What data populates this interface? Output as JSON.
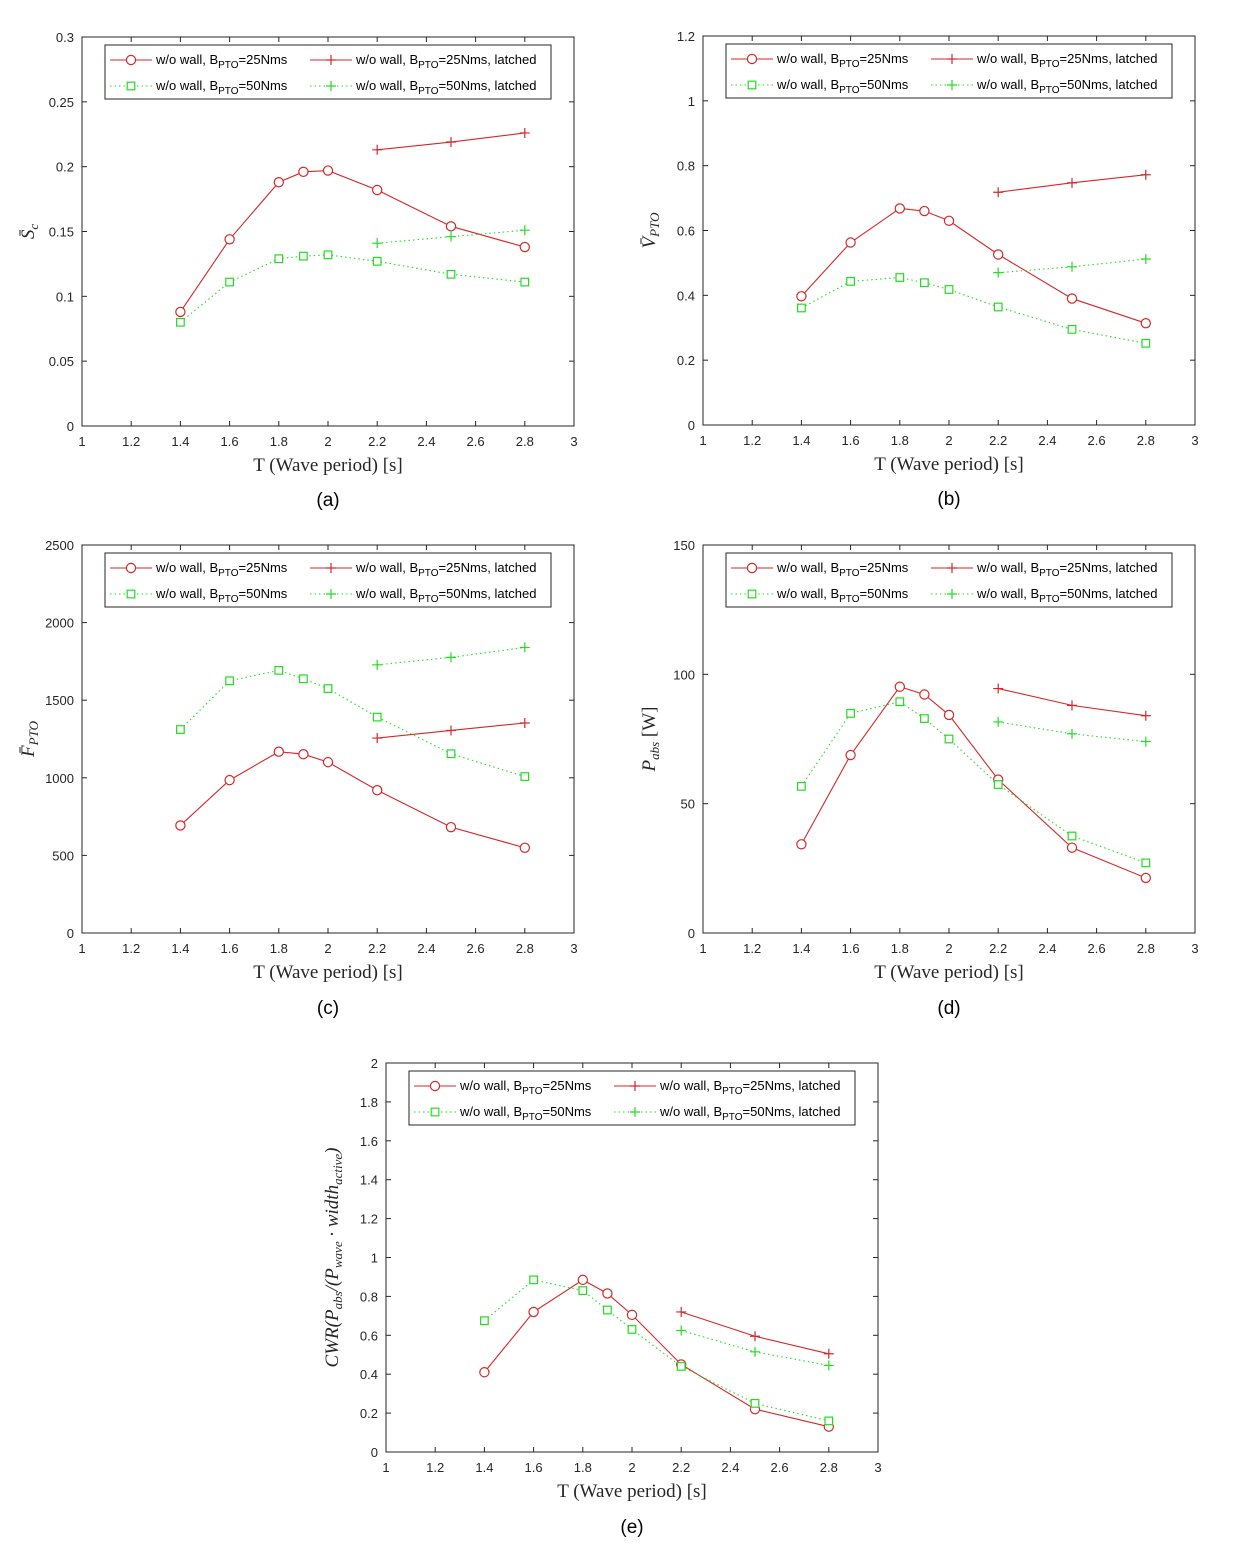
{
  "chart_data": [
    {
      "type": "line",
      "panel_label": "(a)",
      "xlabel": "T (Wave period) [s]",
      "ylabel": "S̄c",
      "ylabel_parts": [
        {
          "t": "S̄",
          "s": ""
        },
        {
          "t": "c",
          "s": "sub"
        }
      ],
      "xlim": [
        1,
        3
      ],
      "ylim": [
        0,
        0.3
      ],
      "xticks": [
        "1",
        "1.2",
        "1.4",
        "1.6",
        "1.8",
        "2",
        "2.2",
        "2.4",
        "2.6",
        "2.8",
        "3"
      ],
      "yticks": [
        "0",
        "0.05",
        "0.1",
        "0.15",
        "0.2",
        "0.25",
        "0.3"
      ],
      "yticks_values": [
        0,
        0.05,
        0.1,
        0.15,
        0.2,
        0.25,
        0.3
      ],
      "legend_placement": "top",
      "series": [
        {
          "name": "w/o wall, BPTO=25Nms",
          "legend_parts": [
            "w/o wall, B",
            "PTO",
            "=25Nms"
          ],
          "color": "#d62728",
          "marker": "circle",
          "dash": "solid",
          "x": [
            1.4,
            1.6,
            1.8,
            1.9,
            2.0,
            2.2,
            2.5,
            2.8
          ],
          "y": [
            0.088,
            0.144,
            0.188,
            0.196,
            0.197,
            0.182,
            0.154,
            0.138
          ]
        },
        {
          "name": "w/o wall, BPTO=25Nms, latched",
          "legend_parts": [
            "w/o wall, B",
            "PTO",
            "=25Nms, latched"
          ],
          "color": "#d62728",
          "marker": "plus",
          "dash": "solid",
          "x": [
            2.2,
            2.5,
            2.8
          ],
          "y": [
            0.213,
            0.219,
            0.226
          ]
        },
        {
          "name": "w/o wall, BPTO=50Nms",
          "legend_parts": [
            "w/o wall, B",
            "PTO",
            "=50Nms"
          ],
          "color": "#22dd22",
          "marker": "square",
          "dash": "dotted",
          "x": [
            1.4,
            1.6,
            1.8,
            1.9,
            2.0,
            2.2,
            2.5,
            2.8
          ],
          "y": [
            0.08,
            0.111,
            0.129,
            0.131,
            0.132,
            0.127,
            0.117,
            0.111
          ]
        },
        {
          "name": "w/o wall, BPTO=50Nms, latched",
          "legend_parts": [
            "w/o wall, B",
            "PTO",
            "=50Nms, latched"
          ],
          "color": "#22dd22",
          "marker": "plus",
          "dash": "dotted",
          "x": [
            2.2,
            2.5,
            2.8
          ],
          "y": [
            0.141,
            0.146,
            0.151
          ]
        }
      ]
    },
    {
      "type": "line",
      "panel_label": "(b)",
      "xlabel": "T (Wave period) [s]",
      "ylabel": "V̄PTO",
      "ylabel_parts": [
        {
          "t": "V̄",
          "s": ""
        },
        {
          "t": "PTO",
          "s": "sub"
        }
      ],
      "xlim": [
        1,
        3
      ],
      "ylim": [
        0,
        1.2
      ],
      "xticks": [
        "1",
        "1.2",
        "1.4",
        "1.6",
        "1.8",
        "2",
        "2.2",
        "2.4",
        "2.6",
        "2.8",
        "3"
      ],
      "yticks": [
        "0",
        "0.2",
        "0.4",
        "0.6",
        "0.8",
        "1",
        "1.2"
      ],
      "yticks_values": [
        0,
        0.2,
        0.4,
        0.6,
        0.8,
        1.0,
        1.2
      ],
      "legend_placement": "top",
      "series": [
        {
          "name": "w/o wall, BPTO=25Nms",
          "legend_parts": [
            "w/o wall, B",
            "PTO",
            "=25Nms"
          ],
          "color": "#d62728",
          "marker": "circle",
          "dash": "solid",
          "x": [
            1.4,
            1.6,
            1.8,
            1.9,
            2.0,
            2.2,
            2.5,
            2.8
          ],
          "y": [
            0.397,
            0.563,
            0.668,
            0.66,
            0.63,
            0.526,
            0.39,
            0.314
          ]
        },
        {
          "name": "w/o wall, BPTO=25Nms, latched",
          "legend_parts": [
            "w/o wall, B",
            "PTO",
            "=25Nms, latched"
          ],
          "color": "#d62728",
          "marker": "plus",
          "dash": "solid",
          "x": [
            2.2,
            2.5,
            2.8
          ],
          "y": [
            0.718,
            0.747,
            0.772
          ]
        },
        {
          "name": "w/o wall, BPTO=50Nms",
          "legend_parts": [
            "w/o wall, B",
            "PTO",
            "=50Nms"
          ],
          "color": "#22dd22",
          "marker": "square",
          "dash": "dotted",
          "x": [
            1.4,
            1.6,
            1.8,
            1.9,
            2.0,
            2.2,
            2.5,
            2.8
          ],
          "y": [
            0.361,
            0.443,
            0.455,
            0.439,
            0.418,
            0.364,
            0.295,
            0.252
          ]
        },
        {
          "name": "w/o wall, BPTO=50Nms, latched",
          "legend_parts": [
            "w/o wall, B",
            "PTO",
            "=50Nms, latched"
          ],
          "color": "#22dd22",
          "marker": "plus",
          "dash": "dotted",
          "x": [
            2.2,
            2.5,
            2.8
          ],
          "y": [
            0.47,
            0.488,
            0.512
          ]
        }
      ]
    },
    {
      "type": "line",
      "panel_label": "(c)",
      "xlabel": "T (Wave period) [s]",
      "ylabel": "F̄PTO",
      "ylabel_parts": [
        {
          "t": "F̄",
          "s": ""
        },
        {
          "t": "PTO",
          "s": "sub"
        }
      ],
      "xlim": [
        1,
        3
      ],
      "ylim": [
        0,
        2500
      ],
      "xticks": [
        "1",
        "1.2",
        "1.4",
        "1.6",
        "1.8",
        "2",
        "2.2",
        "2.4",
        "2.6",
        "2.8",
        "3"
      ],
      "yticks": [
        "0",
        "500",
        "1000",
        "1500",
        "2000",
        "2500"
      ],
      "yticks_values": [
        0,
        500,
        1000,
        1500,
        2000,
        2500
      ],
      "legend_placement": "top",
      "series": [
        {
          "name": "w/o wall, BPTO=25Nms",
          "legend_parts": [
            "w/o wall, B",
            "PTO",
            "=25Nms"
          ],
          "color": "#d62728",
          "marker": "circle",
          "dash": "solid",
          "x": [
            1.4,
            1.6,
            1.8,
            1.9,
            2.0,
            2.2,
            2.5,
            2.8
          ],
          "y": [
            693,
            985,
            1168,
            1152,
            1101,
            920,
            682,
            549
          ]
        },
        {
          "name": "w/o wall, BPTO=25Nms, latched",
          "legend_parts": [
            "w/o wall, B",
            "PTO",
            "=25Nms, latched"
          ],
          "color": "#d62728",
          "marker": "plus",
          "dash": "solid",
          "x": [
            2.2,
            2.5,
            2.8
          ],
          "y": [
            1256,
            1305,
            1353
          ]
        },
        {
          "name": "w/o wall, BPTO=50Nms",
          "legend_parts": [
            "w/o wall, B",
            "PTO",
            "=50Nms"
          ],
          "color": "#22dd22",
          "marker": "square",
          "dash": "dotted",
          "x": [
            1.4,
            1.6,
            1.8,
            1.9,
            2.0,
            2.2,
            2.5,
            2.8
          ],
          "y": [
            1311,
            1625,
            1692,
            1638,
            1575,
            1391,
            1155,
            1008
          ]
        },
        {
          "name": "w/o wall, BPTO=50Nms, latched",
          "legend_parts": [
            "w/o wall, B",
            "PTO",
            "=50Nms, latched"
          ],
          "color": "#22dd22",
          "marker": "plus",
          "dash": "dotted",
          "x": [
            2.2,
            2.5,
            2.8
          ],
          "y": [
            1728,
            1776,
            1840
          ]
        }
      ]
    },
    {
      "type": "line",
      "panel_label": "(d)",
      "xlabel": "T (Wave period) [s]",
      "ylabel": "Pabs [W]",
      "ylabel_parts": [
        {
          "t": "P",
          "s": ""
        },
        {
          "t": "abs",
          "s": "sub"
        },
        {
          "t": " [W]",
          "s": "upright"
        }
      ],
      "xlim": [
        1,
        3
      ],
      "ylim": [
        0,
        150
      ],
      "xticks": [
        "1",
        "1.2",
        "1.4",
        "1.6",
        "1.8",
        "2",
        "2.2",
        "2.4",
        "2.6",
        "2.8",
        "3"
      ],
      "yticks": [
        "0",
        "50",
        "100",
        "150"
      ],
      "yticks_values": [
        0,
        50,
        100,
        150
      ],
      "legend_placement": "top",
      "series": [
        {
          "name": "w/o wall, BPTO=25Nms",
          "legend_parts": [
            "w/o wall, B",
            "PTO",
            "=25Nms"
          ],
          "color": "#d62728",
          "marker": "circle",
          "dash": "solid",
          "x": [
            1.4,
            1.6,
            1.8,
            1.9,
            2.0,
            2.2,
            2.5,
            2.8
          ],
          "y": [
            34.3,
            68.8,
            95.2,
            92.2,
            84.3,
            59.3,
            33.0,
            21.3
          ]
        },
        {
          "name": "w/o wall, BPTO=25Nms, latched",
          "legend_parts": [
            "w/o wall, B",
            "PTO",
            "=25Nms, latched"
          ],
          "color": "#d62728",
          "marker": "plus",
          "dash": "solid",
          "x": [
            2.2,
            2.5,
            2.8
          ],
          "y": [
            94.5,
            88.0,
            84.0
          ]
        },
        {
          "name": "w/o wall, BPTO=50Nms",
          "legend_parts": [
            "w/o wall, B",
            "PTO",
            "=50Nms"
          ],
          "color": "#22dd22",
          "marker": "square",
          "dash": "dotted",
          "x": [
            1.4,
            1.6,
            1.8,
            1.9,
            2.0,
            2.2,
            2.5,
            2.8
          ],
          "y": [
            56.7,
            84.9,
            89.4,
            82.9,
            75.0,
            57.4,
            37.5,
            27.1
          ]
        },
        {
          "name": "w/o wall, BPTO=50Nms, latched",
          "legend_parts": [
            "w/o wall, B",
            "PTO",
            "=50Nms, latched"
          ],
          "color": "#22dd22",
          "marker": "plus",
          "dash": "dotted",
          "x": [
            2.2,
            2.5,
            2.8
          ],
          "y": [
            81.6,
            77.0,
            74.0
          ]
        }
      ]
    },
    {
      "type": "line",
      "panel_label": "(e)",
      "xlabel": "T (Wave period) [s]",
      "ylabel": "CWR(Pabs/(Pwave · widthactive)",
      "ylabel_parts": [
        {
          "t": "CWR(P",
          "s": ""
        },
        {
          "t": "abs",
          "s": "sub"
        },
        {
          "t": "/(P",
          "s": ""
        },
        {
          "t": "wave",
          "s": "sub"
        },
        {
          "t": " · width",
          "s": ""
        },
        {
          "t": "active",
          "s": "sub"
        },
        {
          "t": ")",
          "s": ""
        }
      ],
      "xlim": [
        1,
        3
      ],
      "ylim": [
        0,
        2
      ],
      "xticks": [
        "1",
        "1.2",
        "1.4",
        "1.6",
        "1.8",
        "2",
        "2.2",
        "2.4",
        "2.6",
        "2.8",
        "3"
      ],
      "yticks": [
        "0",
        "0.2",
        "0.4",
        "0.6",
        "0.8",
        "1",
        "1.2",
        "1.4",
        "1.6",
        "1.8",
        "2"
      ],
      "yticks_values": [
        0,
        0.2,
        0.4,
        0.6,
        0.8,
        1.0,
        1.2,
        1.4,
        1.6,
        1.8,
        2.0
      ],
      "legend_placement": "top",
      "series": [
        {
          "name": "w/o wall, BPTO=25Nms",
          "legend_parts": [
            "w/o wall, B",
            "PTO",
            "=25Nms"
          ],
          "color": "#d62728",
          "marker": "circle",
          "dash": "solid",
          "x": [
            1.4,
            1.6,
            1.8,
            1.9,
            2.0,
            2.2,
            2.5,
            2.8
          ],
          "y": [
            0.41,
            0.72,
            0.885,
            0.815,
            0.705,
            0.45,
            0.22,
            0.13
          ]
        },
        {
          "name": "w/o wall, BPTO=25Nms, latched",
          "legend_parts": [
            "w/o wall, B",
            "PTO",
            "=25Nms, latched"
          ],
          "color": "#d62728",
          "marker": "plus",
          "dash": "solid",
          "x": [
            2.2,
            2.5,
            2.8
          ],
          "y": [
            0.72,
            0.595,
            0.505
          ]
        },
        {
          "name": "w/o wall, BPTO=50Nms",
          "legend_parts": [
            "w/o wall, B",
            "PTO",
            "=50Nms"
          ],
          "color": "#22dd22",
          "marker": "square",
          "dash": "dotted",
          "x": [
            1.4,
            1.6,
            1.8,
            1.9,
            2.0,
            2.2,
            2.5,
            2.8
          ],
          "y": [
            0.675,
            0.885,
            0.83,
            0.73,
            0.63,
            0.44,
            0.25,
            0.16
          ]
        },
        {
          "name": "w/o wall, BPTO=50Nms, latched",
          "legend_parts": [
            "w/o wall, B",
            "PTO",
            "=50Nms, latched"
          ],
          "color": "#22dd22",
          "marker": "plus",
          "dash": "dotted",
          "x": [
            2.2,
            2.5,
            2.8
          ],
          "y": [
            0.625,
            0.515,
            0.445
          ]
        }
      ]
    }
  ]
}
